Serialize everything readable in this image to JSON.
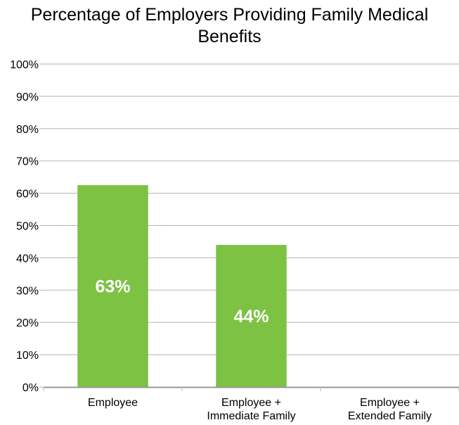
{
  "chart_data": {
    "type": "bar",
    "title": "Percentage of Employers Providing Family Medical Benefits",
    "title_lines": [
      "Percentage of Employers Providing Family Medical",
      "Benefits"
    ],
    "categories": [
      [
        "Employee"
      ],
      [
        "Employee +",
        "Immediate Family"
      ],
      [
        "Employee +",
        "Extended Family"
      ]
    ],
    "values": [
      62.5,
      44,
      0
    ],
    "data_labels": [
      "63%",
      "44%",
      ""
    ],
    "ylim": [
      0,
      100
    ],
    "yticks": [
      "0%",
      "10%",
      "20%",
      "30%",
      "40%",
      "50%",
      "60%",
      "70%",
      "80%",
      "90%",
      "100%"
    ],
    "xlabel": "",
    "ylabel": "",
    "grid": true,
    "legend": "none",
    "bar_color": "#7dc243",
    "grid_color": "#b3b3b3",
    "axis_color": "#b3b3b3"
  }
}
